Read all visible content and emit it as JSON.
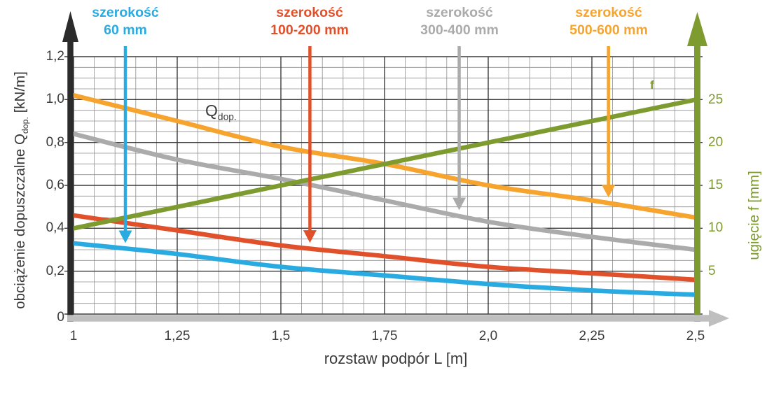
{
  "chart_data": {
    "type": "line",
    "xlabel": "rozstaw podpór L [m]",
    "x": [
      1,
      1.25,
      1.5,
      1.75,
      2.0,
      2.25,
      2.5
    ],
    "x_tick_labels": [
      "1",
      "1,25",
      "1,5",
      "1,75",
      "2,0",
      "2,25",
      "2,5"
    ],
    "x_range": [
      1,
      2.5
    ],
    "grid": {
      "minor_step_x": 0.05,
      "minor_step_y": 0.05,
      "major_step_x": 0.25,
      "major_step_y": 0.2,
      "visible": true
    },
    "left_axis": {
      "title_prefix": "obciążenie dopuszczalne Q",
      "title_sub": "dop.",
      "title_suffix": " [kN/m]",
      "tick_labels": [
        "1,2",
        "1,0",
        "0,8",
        "0,6",
        "0,4",
        "0,2",
        "0"
      ],
      "tick_values": [
        1.2,
        1.0,
        0.8,
        0.6,
        0.4,
        0.2,
        0
      ],
      "range": [
        0,
        1.2
      ],
      "text_color": "#3A3A3A",
      "arrow_color": "#2B2B2B"
    },
    "right_axis": {
      "title": "ugięcie f [mm]",
      "tick_labels": [
        "25",
        "20",
        "15",
        "10",
        "5"
      ],
      "tick_values": [
        25,
        20,
        15,
        10,
        5
      ],
      "range": [
        0,
        25
      ],
      "text_color": "#7E9B2F",
      "arrow_color": "#7E9B2F"
    },
    "x_axis_arrow_color": "#BFBFBF",
    "series": [
      {
        "name": "szerokość 60 mm",
        "axis": "left",
        "color": "#29ABE2",
        "values": [
          0.33,
          0.28,
          0.22,
          0.18,
          0.14,
          0.11,
          0.09
        ],
        "label_line1": "szerokość",
        "label_line2": "60 mm",
        "arrow_x": 1.125
      },
      {
        "name": "szerokość 100-200 mm",
        "axis": "left",
        "color": "#E0512B",
        "values": [
          0.46,
          0.39,
          0.32,
          0.27,
          0.22,
          0.19,
          0.16
        ],
        "label_line1": "szerokość",
        "label_line2": "100-200 mm",
        "arrow_x": 1.57
      },
      {
        "name": "szerokość 300-400 mm",
        "axis": "left",
        "color": "#ABABAB",
        "values": [
          0.84,
          0.72,
          0.63,
          0.53,
          0.43,
          0.36,
          0.3
        ],
        "label_line1": "szerokość",
        "label_line2": "300-400 mm",
        "arrow_x": 1.93
      },
      {
        "name": "szerokość 500-600 mm",
        "axis": "left",
        "color": "#F7A42E",
        "values": [
          1.02,
          0.9,
          0.78,
          0.7,
          0.6,
          0.53,
          0.45
        ],
        "label_line1": "szerokość",
        "label_line2": "500-600 mm",
        "arrow_x": 2.29
      },
      {
        "name": "ugięcie f",
        "axis": "right",
        "color": "#7E9B2F",
        "values": [
          10,
          12.5,
          15,
          17.5,
          20,
          22.5,
          25
        ]
      }
    ],
    "annotations": {
      "qdop_main": "Q",
      "qdop_sub": "dop.",
      "f_label": "f"
    }
  }
}
